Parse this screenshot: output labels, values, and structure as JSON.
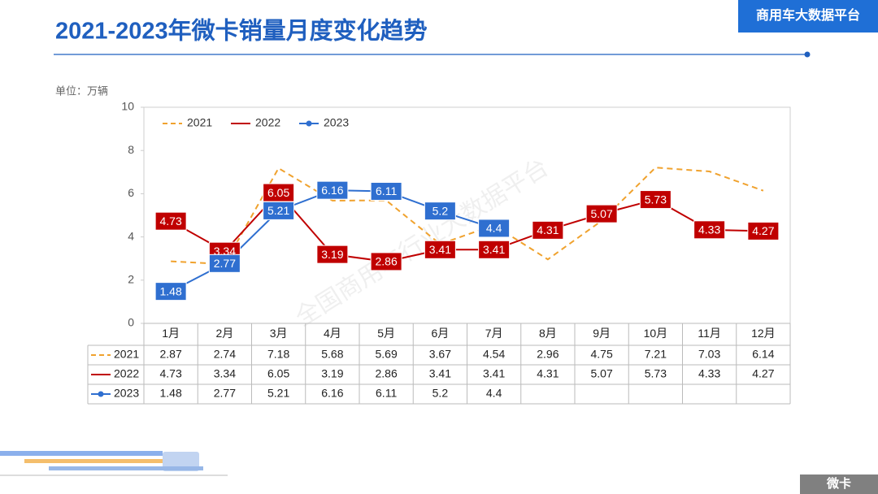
{
  "header": {
    "title": "2021-2023年微卡销量月度变化趋势",
    "brand": "商用车大数据平台",
    "tag": "微卡"
  },
  "chart_data": {
    "type": "line",
    "unit": "单位：万辆",
    "watermark": "全国商用车行业大数据平台",
    "categories": [
      "1月",
      "2月",
      "3月",
      "4月",
      "5月",
      "6月",
      "7月",
      "8月",
      "9月",
      "10月",
      "11月",
      "12月"
    ],
    "ylim": [
      0,
      10
    ],
    "yticks": [
      0,
      2,
      4,
      6,
      8,
      10
    ],
    "legend": "top-left",
    "series": [
      {
        "name": "2021",
        "color": "#f0a22e",
        "dash": true,
        "markers": false,
        "labels": false,
        "values": [
          2.87,
          2.74,
          7.18,
          5.68,
          5.69,
          3.67,
          4.54,
          2.96,
          4.75,
          7.21,
          7.03,
          6.14
        ]
      },
      {
        "name": "2022",
        "color": "#c00000",
        "dash": false,
        "markers": false,
        "labels": true,
        "values": [
          4.73,
          3.34,
          6.05,
          3.19,
          2.86,
          3.41,
          3.41,
          4.31,
          5.07,
          5.73,
          4.33,
          4.27
        ]
      },
      {
        "name": "2023",
        "color": "#2f6fd0",
        "dash": false,
        "markers": true,
        "labels": true,
        "values": [
          1.48,
          2.77,
          5.21,
          6.16,
          6.11,
          5.2,
          4.4,
          null,
          null,
          null,
          null,
          null
        ]
      }
    ]
  }
}
